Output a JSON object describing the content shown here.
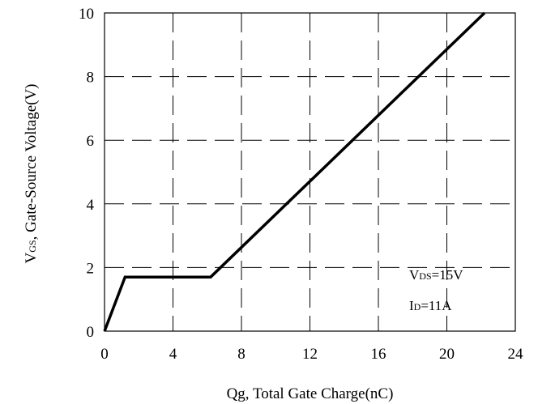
{
  "chart_data": {
    "type": "line",
    "xlabel": "Qg, Total Gate Charge(nC)",
    "ylabel": {
      "prefix": "V",
      "subscript": "GS",
      "rest": ", Gate-Source Voltage(V)"
    },
    "xlim": [
      0,
      24
    ],
    "ylim": [
      0,
      10
    ],
    "x_ticks": [
      "0",
      "4",
      "8",
      "12",
      "16",
      "20",
      "24"
    ],
    "y_ticks": [
      "0",
      "2",
      "4",
      "6",
      "8",
      "10"
    ],
    "x_tick_values": [
      0,
      4,
      8,
      12,
      16,
      20,
      24
    ],
    "y_tick_values": [
      0,
      2,
      4,
      6,
      8,
      10
    ],
    "grid": true,
    "grid_style": "dashed",
    "series": [
      {
        "x": [
          0,
          1.2,
          6.2,
          22.2
        ],
        "y": [
          0,
          1.7,
          1.7,
          10
        ],
        "color": "#000000"
      }
    ],
    "annotations": [
      {
        "main": "V",
        "sub": "DS",
        "rest": "=15V"
      },
      {
        "main": "I",
        "sub": "D",
        "rest": "=11A"
      }
    ]
  }
}
